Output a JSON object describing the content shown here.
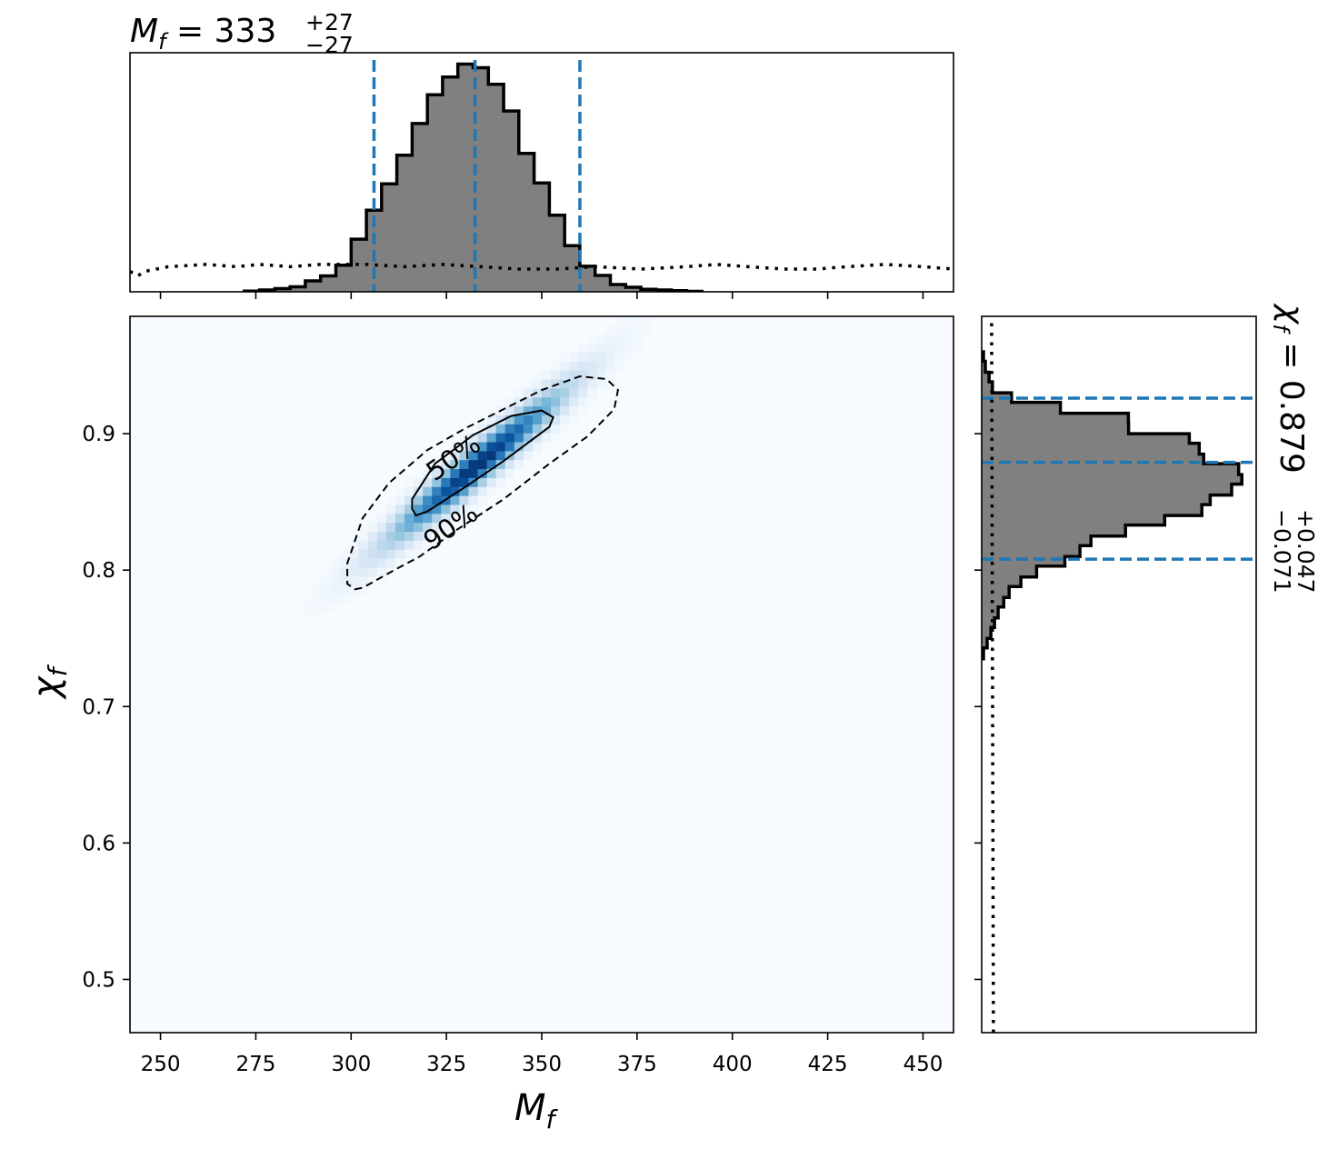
{
  "chart_data": [
    {
      "type": "heatmap",
      "panel": "joint",
      "xlabel_base": "M",
      "xlabel_sub": "f",
      "ylabel_base": "χ",
      "ylabel_sub": "f",
      "xlim": [
        242,
        458
      ],
      "ylim": [
        0.461,
        0.986
      ],
      "xticks": [
        250,
        275,
        300,
        325,
        350,
        375,
        400,
        425,
        450
      ],
      "yticks": [
        0.5,
        0.6,
        0.7,
        0.8,
        0.9
      ],
      "xtick_labels": [
        "250",
        "275",
        "300",
        "325",
        "350",
        "375",
        "400",
        "425",
        "450"
      ],
      "ytick_labels": [
        "0.5",
        "0.6",
        "0.7",
        "0.8",
        "0.9"
      ],
      "colormap": "Blues",
      "density_center": {
        "x": 333,
        "y": 0.877
      },
      "density_sigma": {
        "x": 14,
        "y": 0.034
      },
      "density_correlation": 0.96,
      "contours": [
        {
          "label": "50%",
          "style": "solid",
          "points": [
            [
              317,
              0.84
            ],
            [
              320,
              0.843
            ],
            [
              330,
              0.861
            ],
            [
              340,
              0.88
            ],
            [
              352,
              0.905
            ],
            [
              353,
              0.912
            ],
            [
              350,
              0.917
            ],
            [
              342,
              0.913
            ],
            [
              332,
              0.899
            ],
            [
              322,
              0.878
            ],
            [
              316,
              0.852
            ],
            [
              316,
              0.845
            ],
            [
              317,
              0.84
            ]
          ]
        },
        {
          "label": "90%",
          "style": "dashed",
          "points": [
            [
              301,
              0.786
            ],
            [
              303,
              0.787
            ],
            [
              310,
              0.798
            ],
            [
              318,
              0.81
            ],
            [
              328,
              0.83
            ],
            [
              340,
              0.852
            ],
            [
              352,
              0.878
            ],
            [
              362,
              0.898
            ],
            [
              369,
              0.918
            ],
            [
              370,
              0.932
            ],
            [
              367,
              0.94
            ],
            [
              360,
              0.942
            ],
            [
              350,
              0.932
            ],
            [
              340,
              0.918
            ],
            [
              330,
              0.904
            ],
            [
              320,
              0.888
            ],
            [
              310,
              0.864
            ],
            [
              303,
              0.838
            ],
            [
              299,
              0.805
            ],
            [
              299,
              0.79
            ],
            [
              301,
              0.786
            ]
          ]
        }
      ]
    },
    {
      "type": "bar",
      "panel": "marginal-x",
      "title_base": "M",
      "title_sub": "f",
      "median": "333",
      "plus": "+27",
      "minus": "−27",
      "xlim": [
        242,
        458
      ],
      "ylim": [
        0,
        1.05
      ],
      "bin_edges": [
        272,
        276,
        280,
        284,
        288,
        292,
        296,
        300,
        304,
        308,
        312,
        316,
        320,
        324,
        328,
        332,
        336,
        340,
        344,
        348,
        352,
        356,
        360,
        364,
        368,
        372,
        376,
        380,
        384,
        388,
        392
      ],
      "values": [
        0.003,
        0.008,
        0.014,
        0.022,
        0.048,
        0.07,
        0.117,
        0.231,
        0.358,
        0.474,
        0.6,
        0.739,
        0.865,
        0.943,
        1.0,
        0.984,
        0.911,
        0.794,
        0.608,
        0.478,
        0.336,
        0.203,
        0.112,
        0.072,
        0.032,
        0.02,
        0.011,
        0.008,
        0.005,
        0.002
      ],
      "quantile_lines": [
        306,
        332.5,
        360
      ],
      "prior_points": [
        [
          242,
          0.09
        ],
        [
          244,
          0.07
        ],
        [
          246,
          0.09
        ],
        [
          252,
          0.11
        ],
        [
          262,
          0.12
        ],
        [
          270,
          0.11
        ],
        [
          276,
          0.12
        ],
        [
          284,
          0.11
        ],
        [
          292,
          0.12
        ],
        [
          304,
          0.12
        ],
        [
          314,
          0.11
        ],
        [
          324,
          0.12
        ],
        [
          334,
          0.11
        ],
        [
          344,
          0.1
        ],
        [
          354,
          0.1
        ],
        [
          364,
          0.11
        ],
        [
          376,
          0.1
        ],
        [
          388,
          0.11
        ],
        [
          396,
          0.12
        ],
        [
          404,
          0.11
        ],
        [
          414,
          0.1
        ],
        [
          422,
          0.1
        ],
        [
          430,
          0.11
        ],
        [
          440,
          0.12
        ],
        [
          450,
          0.11
        ],
        [
          458,
          0.1
        ]
      ]
    },
    {
      "type": "bar",
      "panel": "marginal-y",
      "title_base": "χ",
      "title_sub": "f",
      "median": "0.879",
      "plus": "+0.047",
      "minus": "−0.071",
      "ylim": [
        0.461,
        0.986
      ],
      "xlim": [
        0,
        1.05
      ],
      "bin_edges": [
        0.735,
        0.743,
        0.75,
        0.758,
        0.765,
        0.773,
        0.78,
        0.788,
        0.795,
        0.803,
        0.81,
        0.818,
        0.825,
        0.833,
        0.84,
        0.848,
        0.855,
        0.863,
        0.87,
        0.878,
        0.885,
        0.893,
        0.9,
        0.908,
        0.915,
        0.923,
        0.93,
        0.938,
        0.945,
        0.953,
        0.96
      ],
      "values": [
        0.007,
        0.021,
        0.035,
        0.049,
        0.063,
        0.084,
        0.105,
        0.15,
        0.21,
        0.318,
        0.376,
        0.418,
        0.55,
        0.7,
        0.842,
        0.874,
        0.956,
        0.995,
        0.983,
        0.849,
        0.832,
        0.794,
        0.562,
        0.561,
        0.301,
        0.114,
        0.041,
        0.028,
        0.014,
        0.007
      ],
      "quantile_lines": [
        0.808,
        0.879,
        0.926
      ],
      "prior_points": [
        [
          0.461,
          0.045
        ],
        [
          0.986,
          0.038
        ]
      ]
    }
  ]
}
